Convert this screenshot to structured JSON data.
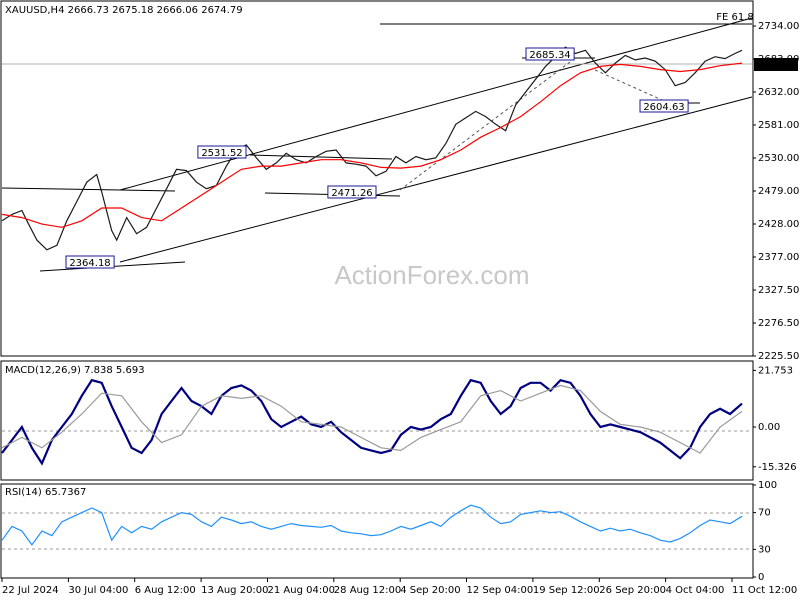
{
  "chart_data": [
    {
      "type": "line",
      "panel": "price",
      "title": "XAUUSD,H4  2666.73 2675.18 2666.06 2674.79",
      "watermark": "ActionForex.com",
      "current_price": "2674.79",
      "ylim": [
        2200,
        2750
      ],
      "y_ticks": [
        "2734.00",
        "2683.00",
        "2632.00",
        "2581.00",
        "2530.00",
        "2479.00",
        "2428.00",
        "2377.00",
        "2327.50",
        "2276.50",
        "2225.50"
      ],
      "x_ticks": [
        "22 Jul 2024",
        "30 Jul 04:00",
        "6 Aug 12:00",
        "13 Aug 20:00",
        "21 Aug 04:00",
        "28 Aug 12:00",
        "4 Sep 20:00",
        "12 Sep 04:00",
        "19 Sep 12:00",
        "26 Sep 20:00",
        "4 Oct 04:00",
        "11 Oct 12:00"
      ],
      "annotations": [
        {
          "label": "2364.18",
          "value": 2364.18
        },
        {
          "label": "2531.52",
          "value": 2531.52
        },
        {
          "label": "2471.26",
          "value": 2471.26
        },
        {
          "label": "2685.34",
          "value": 2685.34
        },
        {
          "label": "2604.63",
          "value": 2604.63
        },
        {
          "label": "FE 61.8",
          "value": 2738
        }
      ],
      "series": [
        {
          "name": "",
          "color": "#1a1a1a",
          "x": [
            0,
            10,
            20,
            25,
            35,
            45,
            55,
            65,
            75,
            85,
            95,
            100,
            110,
            115,
            125,
            135,
            145,
            155,
            165,
            175,
            185,
            195,
            205,
            215,
            225,
            235,
            245,
            255,
            265,
            275,
            285,
            295,
            305,
            315,
            325,
            335,
            345,
            355,
            365,
            375,
            385,
            395,
            405,
            415,
            425,
            435,
            445,
            455,
            465,
            475,
            485,
            495,
            505,
            515,
            525,
            535,
            545,
            555,
            565,
            575,
            585,
            595,
            605,
            615,
            625,
            635,
            645,
            655,
            665,
            675,
            685,
            695,
            705,
            715,
            725,
            735,
            742
          ],
          "y": [
            2410,
            2420,
            2426,
            2410,
            2380,
            2365,
            2372,
            2410,
            2440,
            2470,
            2482,
            2455,
            2395,
            2380,
            2415,
            2390,
            2400,
            2430,
            2460,
            2490,
            2488,
            2470,
            2460,
            2465,
            2495,
            2520,
            2528,
            2508,
            2490,
            2500,
            2515,
            2505,
            2500,
            2510,
            2518,
            2520,
            2500,
            2498,
            2495,
            2480,
            2487,
            2510,
            2500,
            2510,
            2505,
            2508,
            2530,
            2560,
            2570,
            2580,
            2572,
            2560,
            2550,
            2590,
            2610,
            2630,
            2650,
            2665,
            2680,
            2670,
            2675,
            2655,
            2640,
            2655,
            2667,
            2660,
            2663,
            2658,
            2645,
            2620,
            2625,
            2640,
            2658,
            2665,
            2662,
            2670,
            2675
          ]
        },
        {
          "name": "",
          "color": "#ff0000",
          "x": [
            0,
            20,
            40,
            60,
            80,
            100,
            120,
            140,
            160,
            180,
            200,
            220,
            240,
            260,
            280,
            300,
            320,
            340,
            360,
            380,
            400,
            420,
            440,
            460,
            480,
            500,
            520,
            540,
            560,
            580,
            600,
            620,
            640,
            660,
            680,
            700,
            720,
            742
          ],
          "y": [
            2420,
            2415,
            2405,
            2400,
            2410,
            2430,
            2430,
            2415,
            2410,
            2430,
            2450,
            2470,
            2490,
            2495,
            2495,
            2500,
            2505,
            2505,
            2500,
            2493,
            2492,
            2495,
            2505,
            2520,
            2540,
            2555,
            2572,
            2595,
            2620,
            2640,
            2650,
            2653,
            2650,
            2645,
            2642,
            2645,
            2651,
            2655
          ]
        }
      ]
    },
    {
      "type": "line",
      "panel": "macd",
      "title": "MACD(12,26,9) 7.838 5.693",
      "ylim": [
        -20,
        25
      ],
      "y_ticks": [
        "21.753",
        "0.00",
        "-15.326"
      ],
      "series": [
        {
          "name": "",
          "color": "#000080",
          "x": [
            0,
            10,
            20,
            30,
            40,
            50,
            60,
            70,
            80,
            90,
            100,
            110,
            120,
            130,
            140,
            150,
            160,
            170,
            180,
            190,
            200,
            210,
            220,
            230,
            240,
            250,
            260,
            270,
            280,
            290,
            300,
            310,
            320,
            330,
            340,
            350,
            360,
            370,
            380,
            390,
            400,
            410,
            420,
            430,
            440,
            450,
            460,
            470,
            480,
            490,
            500,
            510,
            520,
            530,
            540,
            550,
            560,
            570,
            580,
            590,
            600,
            610,
            620,
            630,
            640,
            650,
            660,
            670,
            680,
            690,
            700,
            710,
            720,
            730,
            742
          ],
          "y": [
            -10,
            -5,
            0,
            -8,
            -14,
            -5,
            0,
            5,
            12,
            18,
            17,
            8,
            0,
            -8,
            -10,
            -5,
            5,
            10,
            15,
            10,
            8,
            5,
            12,
            15,
            16,
            14,
            10,
            3,
            0,
            2,
            4,
            1,
            0,
            2,
            -2,
            -5,
            -8,
            -9,
            -10,
            -9,
            -3,
            0,
            -1,
            0,
            3,
            5,
            12,
            18,
            17,
            10,
            5,
            8,
            15,
            17,
            17,
            14,
            18,
            17,
            12,
            5,
            0,
            1,
            0,
            -1,
            -2,
            -4,
            -6,
            -9,
            -12,
            -8,
            0,
            5,
            7,
            5,
            9
          ]
        },
        {
          "name": "",
          "color": "#9a9a9a",
          "x": [
            0,
            20,
            40,
            60,
            80,
            100,
            120,
            140,
            160,
            180,
            200,
            220,
            240,
            260,
            280,
            300,
            320,
            340,
            360,
            380,
            400,
            420,
            440,
            460,
            480,
            500,
            520,
            540,
            560,
            580,
            600,
            620,
            640,
            660,
            680,
            700,
            720,
            742
          ],
          "y": [
            -8,
            -4,
            -8,
            -2,
            5,
            13,
            12,
            2,
            -6,
            -3,
            8,
            12,
            11,
            12,
            8,
            2,
            1,
            0,
            -4,
            -8,
            -9,
            -4,
            -1,
            2,
            12,
            14,
            10,
            13,
            16,
            14,
            6,
            1,
            0,
            -2,
            -6,
            -10,
            0,
            6
          ]
        }
      ]
    },
    {
      "type": "line",
      "panel": "rsi",
      "title": "RSI(14) 65.7367",
      "ylim": [
        0,
        100
      ],
      "y_ticks": [
        "100",
        "70",
        "30",
        "0"
      ],
      "series": [
        {
          "name": "",
          "color": "#1e90ff",
          "x": [
            0,
            10,
            20,
            30,
            40,
            50,
            60,
            70,
            80,
            90,
            100,
            110,
            120,
            130,
            140,
            150,
            160,
            170,
            180,
            190,
            200,
            210,
            220,
            230,
            240,
            250,
            260,
            270,
            280,
            290,
            300,
            310,
            320,
            330,
            340,
            350,
            360,
            370,
            380,
            390,
            400,
            410,
            420,
            430,
            440,
            450,
            460,
            470,
            480,
            490,
            500,
            510,
            520,
            530,
            540,
            550,
            560,
            570,
            580,
            590,
            600,
            610,
            620,
            630,
            640,
            650,
            660,
            670,
            680,
            690,
            700,
            710,
            720,
            730,
            742
          ],
          "y": [
            40,
            55,
            50,
            35,
            50,
            45,
            60,
            65,
            70,
            75,
            70,
            40,
            55,
            48,
            55,
            52,
            60,
            65,
            70,
            68,
            60,
            55,
            65,
            62,
            58,
            60,
            55,
            52,
            55,
            58,
            56,
            55,
            54,
            56,
            50,
            48,
            47,
            45,
            46,
            50,
            55,
            52,
            56,
            60,
            55,
            65,
            72,
            78,
            75,
            65,
            58,
            60,
            68,
            70,
            72,
            70,
            71,
            66,
            60,
            55,
            50,
            53,
            50,
            52,
            48,
            45,
            40,
            38,
            42,
            48,
            56,
            62,
            60,
            58,
            66
          ]
        }
      ]
    }
  ]
}
